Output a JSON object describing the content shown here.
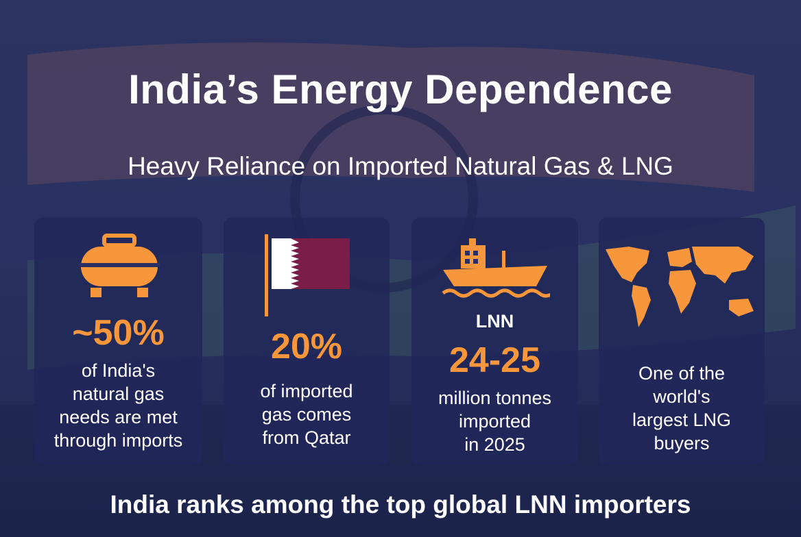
{
  "header": {
    "title": "India’s Energy Dependence",
    "subtitle": "Heavy Reliance on Imported Natural Gas & LNG"
  },
  "cards": [
    {
      "stat": "~50%",
      "lines": [
        "of India's",
        "natural gas",
        "needs are met",
        "through imports"
      ]
    },
    {
      "stat": "20%",
      "lines": [
        "of imported",
        "gas comes",
        "from Qatar"
      ]
    },
    {
      "kicker": "LNN",
      "stat": "24-25",
      "lines": [
        "million tonnes",
        "imported",
        "in 2025"
      ]
    },
    {
      "lines": [
        "One of the",
        "world's",
        "largest LNG",
        "buyers"
      ]
    }
  ],
  "footer": "India ranks among the top global LNN importers"
}
